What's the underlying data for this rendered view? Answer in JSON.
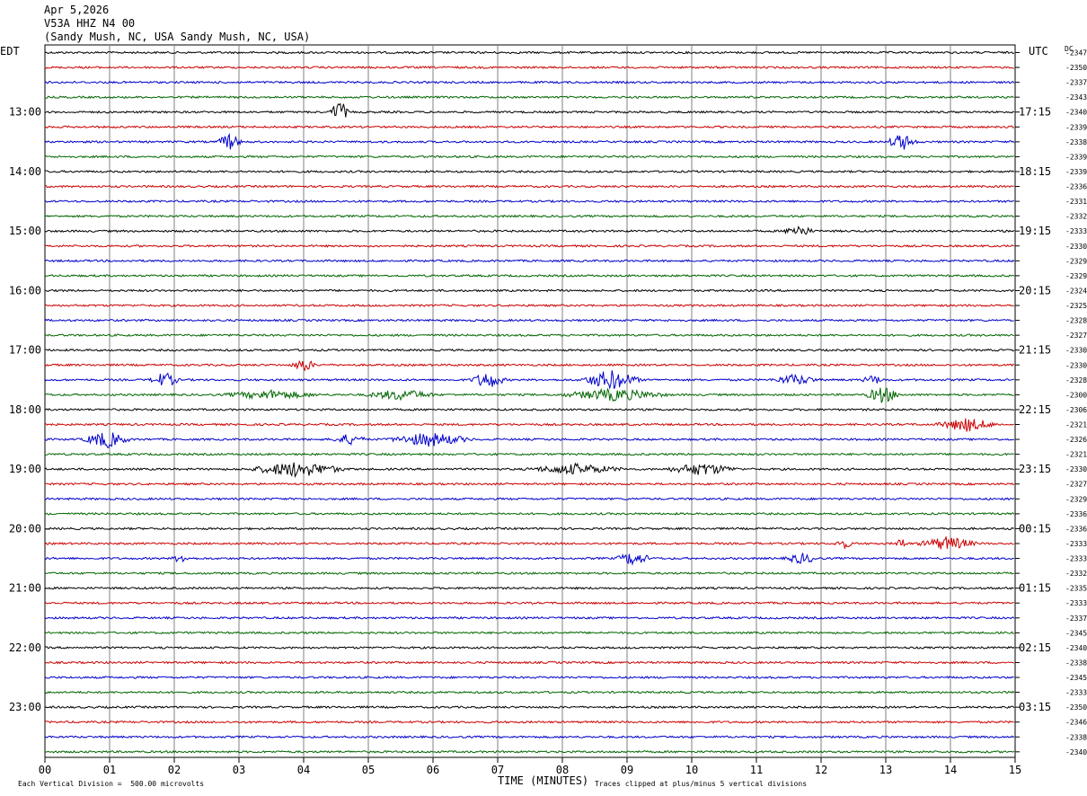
{
  "header": {
    "date": "Apr 5,2026",
    "station": "V53A HHZ N4 00",
    "location": "(Sandy Mush, NC, USA Sandy Mush, NC, USA)"
  },
  "left_tz": "EDT",
  "right_tz": "UTC",
  "dc_label": "DC",
  "footer": {
    "scale_note": "Each Vertical Division =  500.00 microvolts",
    "xlabel": "TIME (MINUTES)",
    "clip_note": "Traces clipped at plus/minus 5 vertical divisions"
  },
  "colors": {
    "trace_cycle": [
      "#000000",
      "#cc0000",
      "#0000cc",
      "#006600"
    ],
    "grid": "#808080"
  },
  "chart_data": {
    "type": "line",
    "title": "Apr 5,2026 V53A HHZ N4 00",
    "xlabel": "TIME (MINUTES)",
    "xlim": [
      0,
      15
    ],
    "xticks": [
      "00",
      "01",
      "02",
      "03",
      "04",
      "05",
      "06",
      "07",
      "08",
      "09",
      "10",
      "11",
      "12",
      "13",
      "14",
      "15"
    ],
    "trace_minutes_per_line": 15,
    "left_hour_labels": [
      "13:00",
      "14:00",
      "15:00",
      "16:00",
      "17:00",
      "18:00",
      "19:00",
      "20:00",
      "21:00",
      "22:00",
      "23:00"
    ],
    "right_hour_labels": [
      "17:15",
      "18:15",
      "19:15",
      "20:15",
      "21:15",
      "22:15",
      "23:15",
      "00:15",
      "01:15",
      "02:15",
      "03:15"
    ],
    "dc_offsets": [
      "-2347",
      "-2350",
      "-2337",
      "-2343",
      "-2340",
      "-2339",
      "-2338",
      "-2339",
      "-2339",
      "-2336",
      "-2331",
      "-2332",
      "-2333",
      "-2330",
      "-2329",
      "-2329",
      "-2324",
      "-2325",
      "-2328",
      "-2327",
      "-2330",
      "-2330",
      "-2328",
      "-2300",
      "-2306",
      "-2321",
      "-2326",
      "-2321",
      "-2330",
      "-2327",
      "-2329",
      "-2336",
      "-2336",
      "-2333",
      "-2333",
      "-2332",
      "-2335",
      "-2333",
      "-2337",
      "-2345",
      "-2340",
      "-2338",
      "-2345",
      "-2333",
      "-2350",
      "-2346",
      "-2338",
      "-2340"
    ],
    "events": [
      {
        "row": 4,
        "minute": 4.55,
        "amplitude": 1.6,
        "width": 0.15
      },
      {
        "row": 6,
        "minute": 2.85,
        "amplitude": 1.0,
        "width": 0.2
      },
      {
        "row": 6,
        "minute": 13.25,
        "amplitude": 1.0,
        "width": 0.25
      },
      {
        "row": 12,
        "minute": 11.65,
        "amplitude": 0.7,
        "width": 0.25
      },
      {
        "row": 21,
        "minute": 4.0,
        "amplitude": 0.8,
        "width": 0.2
      },
      {
        "row": 22,
        "minute": 1.85,
        "amplitude": 0.9,
        "width": 0.25
      },
      {
        "row": 22,
        "minute": 6.85,
        "amplitude": 1.0,
        "width": 0.3
      },
      {
        "row": 22,
        "minute": 8.75,
        "amplitude": 1.2,
        "width": 0.5
      },
      {
        "row": 22,
        "minute": 11.6,
        "amplitude": 0.6,
        "width": 0.4
      },
      {
        "row": 22,
        "minute": 12.8,
        "amplitude": 0.5,
        "width": 0.2
      },
      {
        "row": 23,
        "minute": 3.5,
        "amplitude": 0.5,
        "width": 0.8
      },
      {
        "row": 23,
        "minute": 5.5,
        "amplitude": 0.6,
        "width": 0.6
      },
      {
        "row": 23,
        "minute": 8.8,
        "amplitude": 0.7,
        "width": 0.9
      },
      {
        "row": 23,
        "minute": 12.95,
        "amplitude": 1.0,
        "width": 0.3
      },
      {
        "row": 25,
        "minute": 14.25,
        "amplitude": 0.8,
        "width": 0.5
      },
      {
        "row": 26,
        "minute": 0.95,
        "amplitude": 1.0,
        "width": 0.4
      },
      {
        "row": 26,
        "minute": 4.7,
        "amplitude": 0.6,
        "width": 0.3
      },
      {
        "row": 26,
        "minute": 5.95,
        "amplitude": 0.8,
        "width": 0.7
      },
      {
        "row": 28,
        "minute": 3.9,
        "amplitude": 0.9,
        "width": 0.8
      },
      {
        "row": 28,
        "minute": 8.2,
        "amplitude": 0.6,
        "width": 0.8
      },
      {
        "row": 28,
        "minute": 10.15,
        "amplitude": 0.7,
        "width": 0.6
      },
      {
        "row": 33,
        "minute": 12.35,
        "amplitude": 0.6,
        "width": 0.15
      },
      {
        "row": 33,
        "minute": 13.25,
        "amplitude": 0.6,
        "width": 0.12
      },
      {
        "row": 33,
        "minute": 13.95,
        "amplitude": 0.8,
        "width": 0.5
      },
      {
        "row": 34,
        "minute": 2.1,
        "amplitude": 0.5,
        "width": 0.15
      },
      {
        "row": 34,
        "minute": 9.1,
        "amplitude": 0.8,
        "width": 0.3
      },
      {
        "row": 34,
        "minute": 11.7,
        "amplitude": 0.6,
        "width": 0.3
      }
    ]
  }
}
